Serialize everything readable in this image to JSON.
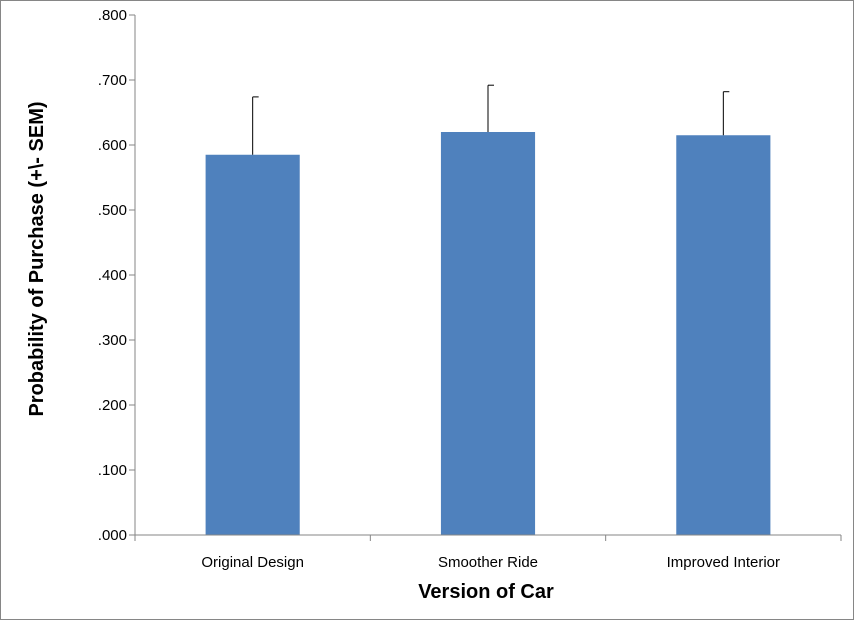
{
  "chart_data": {
    "type": "bar",
    "title": "",
    "xlabel": "Version of Car",
    "ylabel": "Probability of Purchase (+\\- SEM)",
    "categories": [
      "Original Design",
      "Smoother Ride",
      "Improved Interior"
    ],
    "values": [
      0.585,
      0.62,
      0.615
    ],
    "errors": [
      0.089,
      0.072,
      0.067
    ],
    "ylim": [
      0,
      0.8
    ],
    "yticks": [
      0,
      0.1,
      0.2,
      0.3,
      0.4,
      0.5,
      0.6,
      0.7,
      0.8
    ],
    "ytick_labels": [
      ".000",
      ".100",
      ".200",
      ".300",
      ".400",
      ".500",
      ".600",
      ".700",
      ".800"
    ],
    "grid": false,
    "legend": "none",
    "bar_color": "#4F81BD",
    "axis_color": "#868686"
  }
}
